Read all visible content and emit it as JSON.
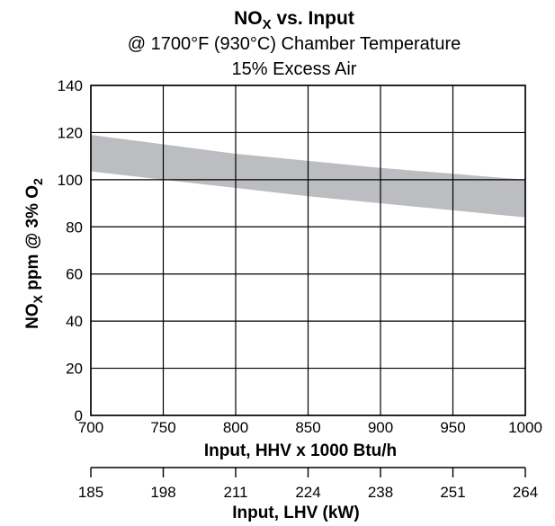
{
  "chart_data": {
    "type": "area",
    "title": {
      "main": "NO",
      "main_sub": "X",
      "main_rest": " vs. Input",
      "line2": "@ 1700°F (930°C) Chamber Temperature",
      "line3": "15% Excess Air"
    },
    "ylabel": {
      "a": "NO",
      "a_sub": "X",
      "b": " ppm @ 3% O",
      "b_sub": "2"
    },
    "xlabel": "Input, HHV x 1000 Btu/h",
    "x2label": "Input, LHV (kW)",
    "xlim": [
      700,
      1000
    ],
    "ylim": [
      0,
      140
    ],
    "x_ticks": [
      700,
      750,
      800,
      850,
      900,
      950,
      1000
    ],
    "y_ticks": [
      0,
      20,
      40,
      60,
      80,
      100,
      120,
      140
    ],
    "x2_ticks": [
      "185",
      "198",
      "211",
      "224",
      "238",
      "251",
      "264"
    ],
    "grid": true,
    "band": {
      "color": "#bcbdc0",
      "x": [
        700,
        750,
        800,
        850,
        900,
        950,
        1000
      ],
      "upper": [
        119,
        115,
        111,
        108,
        105,
        102.5,
        100
      ],
      "lower": [
        103.5,
        100,
        96.5,
        93,
        90,
        87,
        84
      ]
    }
  }
}
